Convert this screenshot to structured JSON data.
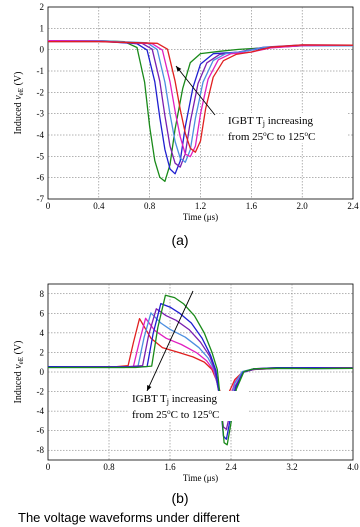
{
  "chart_data": [
    {
      "type": "line",
      "panel_label": "(a)",
      "xlabel": "Time (μs)",
      "ylabel_prefix": "Induced ",
      "ylabel_var": "v",
      "ylabel_sub": "eE",
      "ylabel_suffix": " (V)",
      "xlim": [
        0,
        2.4
      ],
      "ylim": [
        -7,
        2
      ],
      "x_ticks": [
        "0",
        "0.4",
        "0.8",
        "1.2",
        "1.6",
        "2.0",
        "2.4"
      ],
      "y_ticks": [
        "2",
        "1",
        "0",
        "-1",
        "-2",
        "-3",
        "-4",
        "-5",
        "-6",
        "-7"
      ],
      "grid": true,
      "annotation": {
        "line1": "IGBT T",
        "line1_sub": "j",
        "line1_rest": " increasing",
        "line2": "from 25",
        "line2_sup1": "o",
        "line2_mid": "C to 125",
        "line2_sup2": "o",
        "line2_end": "C"
      },
      "series": [
        {
          "color": "#1a8a1a",
          "x": [
            0,
            0.4,
            0.6,
            0.7,
            0.76,
            0.8,
            0.84,
            0.88,
            0.92,
            0.96,
            1.0,
            1.06,
            1.12,
            1.2,
            1.35,
            1.5,
            1.7,
            2.0,
            2.4
          ],
          "y": [
            0.4,
            0.4,
            0.35,
            0.1,
            -1.5,
            -3.6,
            -5.2,
            -6.0,
            -6.2,
            -5.4,
            -3.7,
            -1.8,
            -0.6,
            -0.2,
            -0.1,
            0.0,
            0.1,
            0.2,
            0.2
          ]
        },
        {
          "color": "#1f1fd0",
          "x": [
            0,
            0.4,
            0.7,
            0.78,
            0.84,
            0.88,
            0.92,
            0.96,
            1.0,
            1.04,
            1.08,
            1.14,
            1.2,
            1.3,
            1.5,
            1.7,
            2.0,
            2.4
          ],
          "y": [
            0.4,
            0.4,
            0.3,
            0.0,
            -1.5,
            -3.2,
            -4.7,
            -5.6,
            -5.8,
            -5.2,
            -3.6,
            -1.8,
            -0.7,
            -0.2,
            -0.1,
            0.1,
            0.2,
            0.2
          ]
        },
        {
          "color": "#7a1fb0",
          "x": [
            0,
            0.4,
            0.74,
            0.82,
            0.88,
            0.92,
            0.96,
            1.0,
            1.04,
            1.08,
            1.12,
            1.18,
            1.25,
            1.35,
            1.5,
            1.7,
            2.0,
            2.4
          ],
          "y": [
            0.4,
            0.4,
            0.3,
            0.0,
            -1.5,
            -3.1,
            -4.5,
            -5.3,
            -5.5,
            -4.9,
            -3.4,
            -1.6,
            -0.6,
            -0.2,
            -0.1,
            0.1,
            0.2,
            0.2
          ]
        },
        {
          "color": "#4c8fe0",
          "x": [
            0,
            0.4,
            0.78,
            0.86,
            0.92,
            0.96,
            1.0,
            1.04,
            1.08,
            1.12,
            1.16,
            1.22,
            1.3,
            1.4,
            1.55,
            1.7,
            2.0,
            2.4
          ],
          "y": [
            0.4,
            0.4,
            0.3,
            0.0,
            -1.5,
            -3.0,
            -4.3,
            -5.1,
            -5.3,
            -4.7,
            -3.2,
            -1.5,
            -0.5,
            -0.2,
            -0.1,
            0.1,
            0.2,
            0.2
          ]
        },
        {
          "color": "#e020c0",
          "x": [
            0,
            0.4,
            0.82,
            0.9,
            0.96,
            1.0,
            1.04,
            1.08,
            1.12,
            1.16,
            1.2,
            1.26,
            1.34,
            1.44,
            1.6,
            1.75,
            2.0,
            2.4
          ],
          "y": [
            0.4,
            0.4,
            0.3,
            0.0,
            -1.5,
            -2.9,
            -4.1,
            -4.9,
            -5.0,
            -4.5,
            -3.0,
            -1.4,
            -0.5,
            -0.2,
            -0.1,
            0.1,
            0.2,
            0.2
          ]
        },
        {
          "color": "#e02020",
          "x": [
            0,
            0.4,
            0.86,
            0.94,
            1.0,
            1.04,
            1.08,
            1.12,
            1.16,
            1.2,
            1.24,
            1.3,
            1.38,
            1.48,
            1.6,
            1.75,
            2.0,
            2.4
          ],
          "y": [
            0.4,
            0.4,
            0.3,
            0.0,
            -1.5,
            -2.8,
            -3.9,
            -4.6,
            -4.8,
            -4.3,
            -2.8,
            -1.3,
            -0.5,
            -0.2,
            -0.1,
            0.1,
            0.2,
            0.2
          ]
        }
      ]
    },
    {
      "type": "line",
      "panel_label": "(b)",
      "xlabel": "Time (μs)",
      "ylabel_prefix": "Induced ",
      "ylabel_var": "v",
      "ylabel_sub": "eE",
      "ylabel_suffix": " (V)",
      "xlim": [
        0,
        4.0
      ],
      "ylim": [
        -9,
        9
      ],
      "x_ticks": [
        "0",
        "0.8",
        "1.6",
        "2.4",
        "3.2",
        "4.0"
      ],
      "y_ticks": [
        "8",
        "6",
        "4",
        "2",
        "0",
        "-2",
        "-4",
        "-6",
        "-8"
      ],
      "grid": true,
      "annotation": {
        "line1": "IGBT T",
        "line1_sub": "j",
        "line1_rest": " increasing",
        "line2": "from 25",
        "line2_sup1": "o",
        "line2_mid": "C to 125",
        "line2_sup2": "o",
        "line2_end": "C"
      },
      "series": [
        {
          "color": "#e02020",
          "x": [
            0,
            0.9,
            1.05,
            1.12,
            1.2,
            1.35,
            1.5,
            1.7,
            1.9,
            2.05,
            2.15,
            2.22,
            2.28,
            2.33,
            2.38,
            2.45,
            2.55,
            2.7,
            3.0,
            3.5,
            4.0
          ],
          "y": [
            0.5,
            0.5,
            0.6,
            3.0,
            5.5,
            3.5,
            2.5,
            2.0,
            1.5,
            1.0,
            0.3,
            -1.0,
            -2.6,
            -2.8,
            -2.0,
            -0.8,
            0.0,
            0.3,
            0.4,
            0.4,
            0.4
          ]
        },
        {
          "color": "#e020c0",
          "x": [
            0,
            0.95,
            1.12,
            1.2,
            1.28,
            1.4,
            1.55,
            1.75,
            1.95,
            2.08,
            2.17,
            2.23,
            2.28,
            2.33,
            2.38,
            2.45,
            2.55,
            2.7,
            3.0,
            3.5,
            4.0
          ],
          "y": [
            0.5,
            0.5,
            0.6,
            3.2,
            5.5,
            4.2,
            3.4,
            2.8,
            2.0,
            1.2,
            0.2,
            -1.5,
            -3.6,
            -3.8,
            -2.8,
            -1.0,
            0.0,
            0.3,
            0.4,
            0.4,
            0.4
          ]
        },
        {
          "color": "#4c8fe0",
          "x": [
            0,
            1.0,
            1.18,
            1.26,
            1.35,
            1.48,
            1.6,
            1.8,
            1.98,
            2.1,
            2.18,
            2.24,
            2.29,
            2.33,
            2.38,
            2.45,
            2.55,
            2.7,
            3.0,
            3.5,
            4.0
          ],
          "y": [
            0.5,
            0.5,
            0.6,
            3.5,
            6.0,
            5.0,
            4.4,
            3.6,
            2.5,
            1.4,
            0.2,
            -2.0,
            -4.6,
            -4.8,
            -3.5,
            -1.2,
            0.0,
            0.3,
            0.4,
            0.4,
            0.4
          ]
        },
        {
          "color": "#7a1fb0",
          "x": [
            0,
            1.05,
            1.24,
            1.32,
            1.42,
            1.55,
            1.68,
            1.85,
            2.0,
            2.12,
            2.19,
            2.25,
            2.3,
            2.34,
            2.39,
            2.46,
            2.56,
            2.7,
            3.0,
            3.5,
            4.0
          ],
          "y": [
            0.5,
            0.5,
            0.6,
            3.8,
            6.5,
            5.8,
            5.3,
            4.3,
            3.0,
            1.6,
            0.2,
            -2.5,
            -5.6,
            -5.9,
            -4.2,
            -1.4,
            0.0,
            0.3,
            0.4,
            0.4,
            0.4
          ]
        },
        {
          "color": "#1f1fd0",
          "x": [
            0,
            1.1,
            1.3,
            1.38,
            1.48,
            1.6,
            1.72,
            1.88,
            2.02,
            2.13,
            2.2,
            2.26,
            2.3,
            2.34,
            2.39,
            2.46,
            2.56,
            2.7,
            3.0,
            3.5,
            4.0
          ],
          "y": [
            0.5,
            0.5,
            0.6,
            4.0,
            7.0,
            6.6,
            6.0,
            5.0,
            3.5,
            1.8,
            0.2,
            -3.0,
            -6.6,
            -6.9,
            -4.8,
            -1.6,
            0.0,
            0.3,
            0.4,
            0.4,
            0.4
          ]
        },
        {
          "color": "#1a8a1a",
          "x": [
            0,
            1.15,
            1.36,
            1.44,
            1.54,
            1.66,
            1.78,
            1.92,
            2.05,
            2.15,
            2.22,
            2.27,
            2.31,
            2.35,
            2.4,
            2.47,
            2.57,
            2.7,
            3.0,
            3.5,
            4.0
          ],
          "y": [
            0.5,
            0.5,
            0.6,
            4.5,
            7.8,
            7.6,
            7.0,
            5.8,
            4.0,
            2.0,
            0.2,
            -3.5,
            -7.2,
            -7.4,
            -5.2,
            -1.8,
            0.0,
            0.3,
            0.4,
            0.4,
            0.4
          ]
        }
      ]
    }
  ],
  "caption_fragment": "The voltage waveforms under different"
}
